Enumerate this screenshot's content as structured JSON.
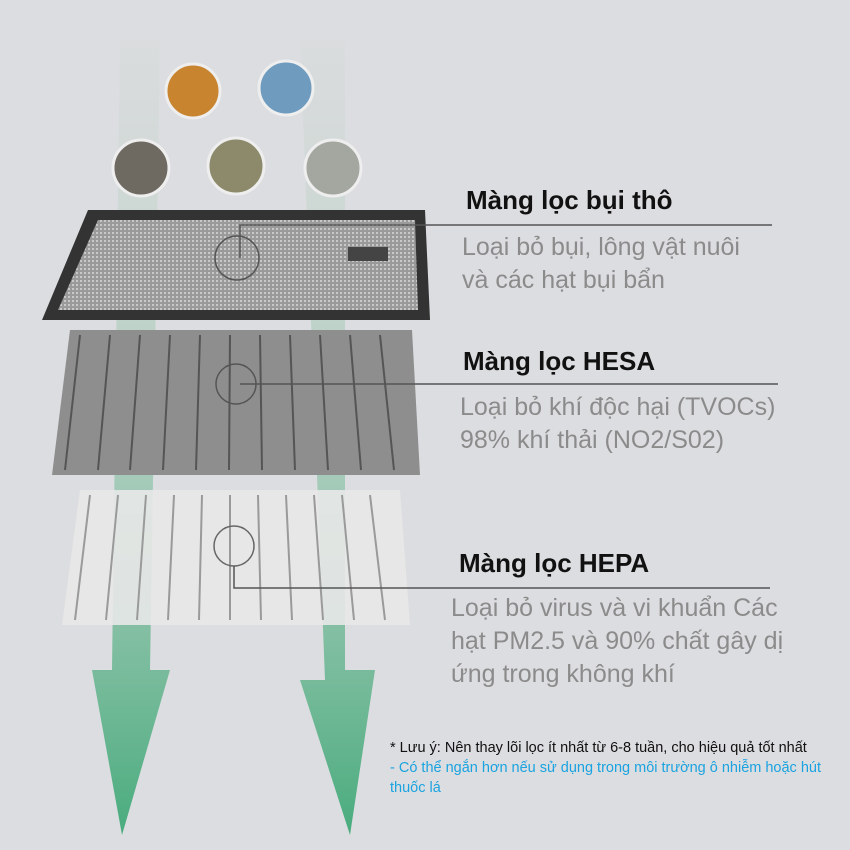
{
  "layers": [
    {
      "title": "Màng lọc bụi thô",
      "desc": [
        "Loại bỏ bụi, lông vật nuôi",
        "và các hạt bụi bẩn"
      ]
    },
    {
      "title": "Màng lọc HESA",
      "desc": [
        "Loại bỏ khí độc hại (TVOCs)",
        "98% khí thải (NO2/S02)"
      ]
    },
    {
      "title": "Màng lọc HEPA",
      "desc": [
        "Loại bỏ virus và vi khuẩn Các",
        "hạt PM2.5 và 90% chất gây dị",
        "ứng trong không khí"
      ]
    }
  ],
  "note": {
    "main": "* Lưu ý: Nên thay lõi lọc ít nhất từ 6-8 tuần, cho hiệu quả tốt nhất",
    "sub": "- Có thể ngắn hơn nếu sử dụng trong môi trường ô nhiễm hoặc hút thuốc lá"
  },
  "colors": {
    "background": "#dcdde0",
    "arrow": "#3fae7a",
    "note_blue": "#1aa3e0"
  }
}
